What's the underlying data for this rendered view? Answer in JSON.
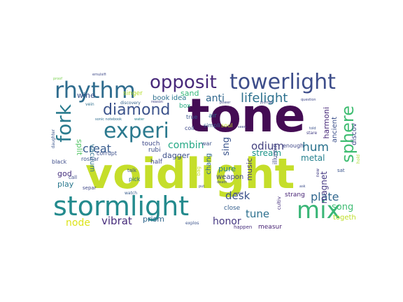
{
  "words": [
    {
      "text": "voidlight",
      "color": "#c5de2a"
    },
    {
      "text": "tone",
      "color": "#440c54"
    },
    {
      "text": "stormlight",
      "color": "#238a8d"
    },
    {
      "text": "rhythm",
      "color": "#2f6c8e"
    },
    {
      "text": "towerlight",
      "color": "#3d4d8a"
    },
    {
      "text": "opposit",
      "color": "#48297a"
    },
    {
      "text": "experi",
      "color": "#2b798e"
    },
    {
      "text": "mix",
      "color": "#3ab677"
    },
    {
      "text": "fork",
      "color": "#2a7b8e"
    },
    {
      "text": "diamond",
      "color": "#3b528b"
    },
    {
      "text": "sphere",
      "color": "#40bd72"
    },
    {
      "text": "lifelight",
      "color": "#2d718e"
    },
    {
      "text": "plate",
      "color": "#31678e"
    },
    {
      "text": "odium",
      "color": "#43417f"
    },
    {
      "text": "hum",
      "color": "#2c738e"
    },
    {
      "text": "creat",
      "color": "#375b8d"
    },
    {
      "text": "song",
      "color": "#3fbc73"
    },
    {
      "text": "vibrat",
      "color": "#472d7b"
    },
    {
      "text": "tune",
      "color": "#2d708e"
    },
    {
      "text": "honor",
      "color": "#453781"
    },
    {
      "text": "desk",
      "color": "#3b528b"
    },
    {
      "text": "node",
      "color": "#dce319"
    },
    {
      "text": "prism",
      "color": "#31678e"
    },
    {
      "text": "anti",
      "color": "#31688e"
    },
    {
      "text": "combin",
      "color": "#22a884"
    },
    {
      "text": "sing",
      "color": "#3a548c"
    },
    {
      "text": "split",
      "color": "#55c667"
    },
    {
      "text": "vacuum",
      "color": "#2d708e"
    },
    {
      "text": "stream",
      "color": "#1f968b"
    },
    {
      "text": "pure",
      "color": "#287d8e"
    },
    {
      "text": "music",
      "color": "#443983"
    },
    {
      "text": "weapon",
      "color": "#3f4788"
    },
    {
      "text": "metal",
      "color": "#26818e"
    },
    {
      "text": "magnet",
      "color": "#453882"
    },
    {
      "text": "harmoni",
      "color": "#472878"
    },
    {
      "text": "ancient",
      "color": "#3c508b"
    },
    {
      "text": "discov",
      "color": "#3e4a89"
    },
    {
      "text": "wine",
      "color": "#3b528b"
    },
    {
      "text": "sand",
      "color": "#35b779"
    },
    {
      "text": "book",
      "color": "#2e6f8e"
    },
    {
      "text": "idea",
      "color": "#29798e"
    },
    {
      "text": "box",
      "color": "#27ad81"
    },
    {
      "text": "god",
      "color": "#46307e"
    },
    {
      "text": "play",
      "color": "#2a788e"
    },
    {
      "text": "dagger",
      "color": "#3c4f8a"
    },
    {
      "text": "chang",
      "color": "#30698e"
    },
    {
      "text": "close",
      "color": "#355f8d"
    },
    {
      "text": "touch",
      "color": "#3e4989"
    },
    {
      "text": "half",
      "color": "#3f4788"
    },
    {
      "text": "rubi",
      "color": "#3d4e8a"
    },
    {
      "text": "roshar",
      "color": "#3b528b"
    },
    {
      "text": "measur",
      "color": "#482374"
    },
    {
      "text": "togeth",
      "color": "#bddf26"
    },
    {
      "text": "strang",
      "color": "#482576"
    },
    {
      "text": "singer",
      "color": "#b5de2b"
    },
    {
      "text": "air",
      "color": "#2f6c8e"
    },
    {
      "text": "true",
      "color": "#39568c"
    },
    {
      "text": "coil",
      "color": "#3e4989"
    },
    {
      "text": "simpli",
      "color": "#375b8d"
    },
    {
      "text": "illumin",
      "color": "#404688"
    },
    {
      "text": "enough",
      "color": "#3f4788"
    },
    {
      "text": "war",
      "color": "#3b528b"
    },
    {
      "text": "soul",
      "color": "#c2df23"
    },
    {
      "text": "cultiv",
      "color": "#46307e"
    },
    {
      "text": "happen",
      "color": "#472f7d"
    },
    {
      "text": "explos",
      "color": "#3b528b"
    },
    {
      "text": "corrupt",
      "color": "#3c4f8a"
    },
    {
      "text": "black",
      "color": "#3e4c8a"
    },
    {
      "text": "call",
      "color": "#3e4989"
    },
    {
      "text": "talk",
      "color": "#3b528b"
    },
    {
      "text": "pick",
      "color": "#2e6e8e"
    },
    {
      "text": "separ",
      "color": "#3f4889"
    },
    {
      "text": "watch",
      "color": "#375a8c"
    },
    {
      "text": "vein",
      "color": "#2e6f8e"
    },
    {
      "text": "discovery",
      "color": "#34618d"
    },
    {
      "text": "reason",
      "color": "#404387"
    },
    {
      "text": "sonic notebook",
      "color": "#2f6b8e"
    },
    {
      "text": "water",
      "color": "#27808e"
    },
    {
      "text": "proof",
      "color": "#7ad151"
    },
    {
      "text": "emulsifi",
      "color": "#3e4989"
    },
    {
      "text": "daughter",
      "color": "#3a548c"
    },
    {
      "text": "seen",
      "color": "#404588"
    },
    {
      "text": "stare",
      "color": "#433e85"
    },
    {
      "text": "question",
      "color": "#3f4788"
    },
    {
      "text": "journal",
      "color": "#3e4a89"
    },
    {
      "text": "power",
      "color": "#3e4989"
    },
    {
      "text": "told",
      "color": "#3b528b"
    },
    {
      "text": "death",
      "color": "#3f4788"
    },
    {
      "text": "world",
      "color": "#404588"
    },
    {
      "text": "ask",
      "color": "#3d4e8a"
    },
    {
      "text": "sat",
      "color": "#3a548c"
    },
    {
      "text": "new",
      "color": "#433e85"
    },
    {
      "text": "bag",
      "color": "#c8e020"
    },
    {
      "text": "put",
      "color": "#3f4788"
    },
    {
      "text": "hold",
      "color": "#a8db34"
    }
  ]
}
